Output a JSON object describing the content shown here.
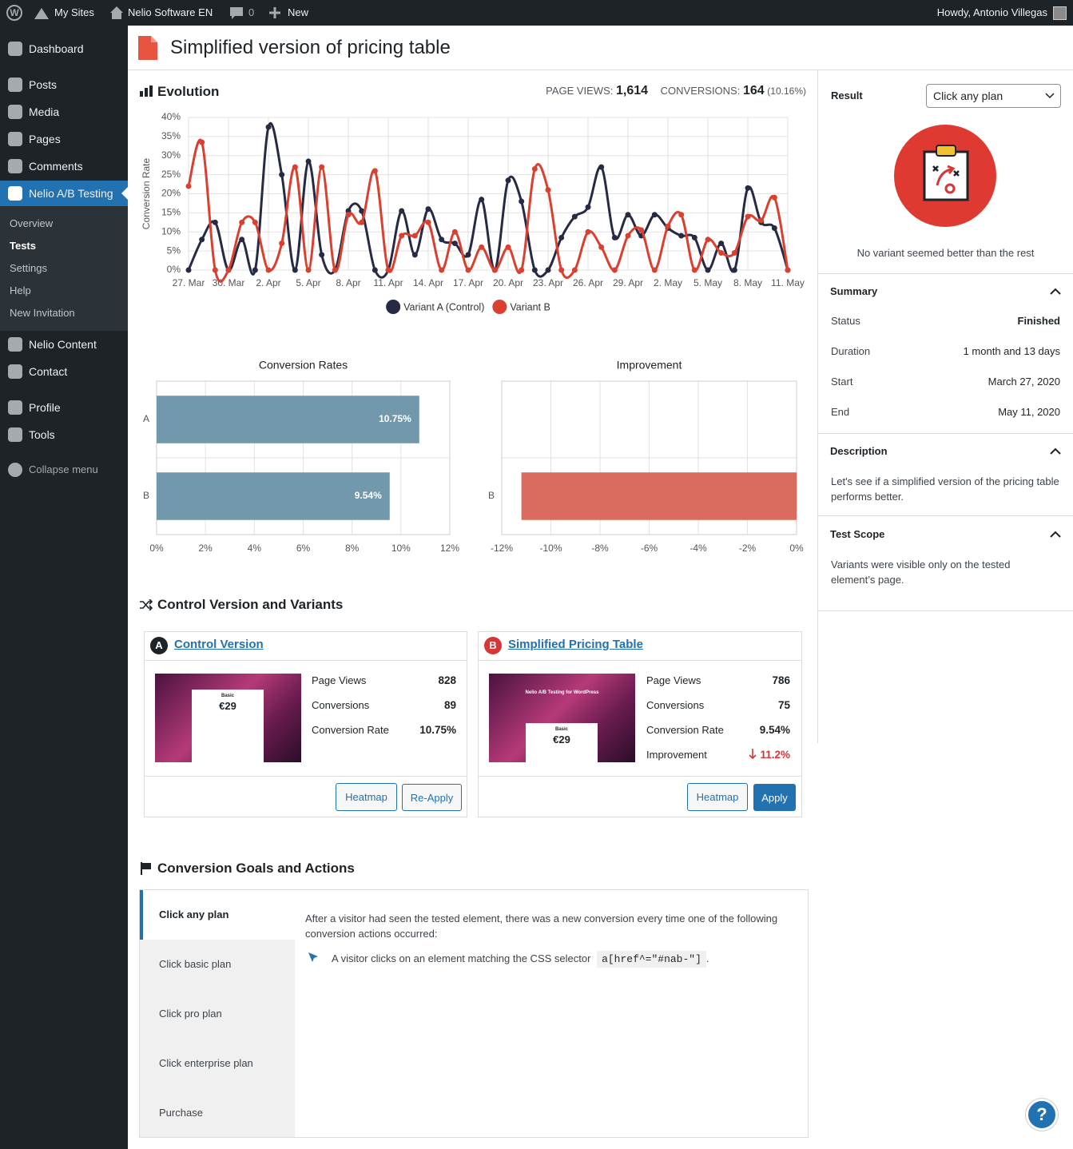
{
  "admin_bar": {
    "my_sites": "My Sites",
    "site": "Nelio Software EN",
    "comments": 0,
    "new": "New",
    "greeting": "Howdy, Antonio Villegas"
  },
  "menu": {
    "main": [
      "Dashboard",
      "Posts",
      "Media",
      "Pages",
      "Comments",
      "Nelio A/B Testing"
    ],
    "submenu": [
      "Overview",
      "Tests",
      "Settings",
      "Help",
      "New Invitation"
    ],
    "more": [
      "Nelio Content",
      "Contact",
      "Profile",
      "Tools"
    ],
    "collapse": "Collapse menu"
  },
  "header": {
    "title": "Simplified version of pricing table"
  },
  "evolution": {
    "page_views_label": "PAGE VIEWS:",
    "page_views": "1,614",
    "conversions_label": "CONVERSIONS:",
    "conversions": 164,
    "conversion_rate": "(10.16%)"
  },
  "chart_data": [
    {
      "type": "line",
      "title": "Evolution",
      "y_label": "Conversion Rate",
      "grid": true,
      "legend": "bottom",
      "categories": [
        "27. Mar",
        null,
        null,
        "30. Mar",
        null,
        null,
        "2. Apr",
        null,
        null,
        "5. Apr",
        null,
        null,
        "8. Apr",
        null,
        null,
        "11. Apr",
        null,
        null,
        "14. Apr",
        null,
        null,
        "17. Apr",
        null,
        null,
        "20. Apr",
        null,
        null,
        "23. Apr",
        null,
        null,
        "26. Apr",
        null,
        null,
        "29. Apr",
        null,
        null,
        "2. May",
        null,
        null,
        "5. May",
        null,
        null,
        "8. May",
        null,
        null,
        "11. May"
      ],
      "series": [
        {
          "name": "Variant A (Control)",
          "color": "#262a43",
          "values": [
            0,
            8,
            12.5,
            0,
            8,
            0,
            37.5,
            25,
            0,
            28.5,
            4,
            0,
            15.5,
            15.5,
            0,
            0,
            15.5,
            4,
            16,
            8,
            7,
            4,
            18.5,
            0,
            23.5,
            18,
            0,
            0,
            8.5,
            14,
            16.5,
            27,
            8.5,
            14.5,
            9,
            14.5,
            11,
            9,
            8.5,
            0,
            7,
            0,
            21.5,
            12.5,
            11,
            0
          ]
        },
        {
          "name": "Variant B",
          "color": "#d9402f",
          "values": [
            22,
            33.5,
            0,
            0,
            12.5,
            12.5,
            0,
            7,
            27,
            0,
            27,
            0,
            14.5,
            12.5,
            26,
            0,
            9,
            9,
            12.5,
            0,
            10,
            0,
            6,
            0,
            6,
            0,
            26.5,
            21,
            0,
            0,
            10,
            6,
            0,
            9,
            10.5,
            0,
            11.5,
            14.5,
            0,
            8,
            4.5,
            4.5,
            14,
            13,
            19,
            0
          ]
        }
      ],
      "ylim": [
        0,
        40
      ],
      "yticks": [
        {
          "value": 0,
          "label": "0%"
        },
        {
          "value": 5,
          "label": "5%"
        },
        {
          "value": 10,
          "label": "10%"
        },
        {
          "value": 15,
          "label": "15%"
        },
        {
          "value": 20,
          "label": "20%"
        },
        {
          "value": 25,
          "label": "25%"
        },
        {
          "value": 30,
          "label": "30%"
        },
        {
          "value": 35,
          "label": "35%"
        },
        {
          "value": 40,
          "label": "40%"
        }
      ]
    },
    {
      "type": "hbar",
      "title": "Conversion Rates",
      "categories": [
        "A",
        "B"
      ],
      "values": [
        10.75,
        9.54
      ],
      "value_labels": [
        "10.75%",
        "9.54%"
      ],
      "color": "#7199ab",
      "xlim": [
        0,
        12
      ],
      "xticks": [
        {
          "value": 0,
          "label": "0%"
        },
        {
          "value": 2,
          "label": "2%"
        },
        {
          "value": 4,
          "label": "4%"
        },
        {
          "value": 6,
          "label": "6%"
        },
        {
          "value": 8,
          "label": "8%"
        },
        {
          "value": 10,
          "label": "10%"
        },
        {
          "value": 12,
          "label": "12%"
        }
      ]
    },
    {
      "type": "hbar",
      "title": "Improvement",
      "categories": [
        null,
        "B"
      ],
      "values": [
        null,
        -11.2
      ],
      "color": "#db6b5e",
      "xlim": [
        -12,
        0
      ],
      "xticks": [
        {
          "value": -12,
          "label": "-12%"
        },
        {
          "value": -10,
          "label": "-10%"
        },
        {
          "value": -8,
          "label": "-8%"
        },
        {
          "value": -6,
          "label": "-6%"
        },
        {
          "value": -4,
          "label": "-4%"
        },
        {
          "value": -2,
          "label": "-2%"
        },
        {
          "value": 0,
          "label": "0%"
        }
      ]
    }
  ],
  "variants": {
    "title": "Control Version and Variants",
    "cards": [
      {
        "letter": "A",
        "name": "Control Version",
        "thumbnail": [
          "Basic",
          "€29"
        ],
        "metrics": [
          [
            "Page Views",
            828
          ],
          [
            "Conversions",
            89
          ],
          [
            "Conversion Rate",
            "10.75%"
          ]
        ],
        "buttons": [
          "Heatmap",
          "Re-Apply"
        ]
      },
      {
        "letter": "B",
        "name": "Simplified Pricing Table",
        "thumbnail": [
          "Nelio A/B Testing for WordPress",
          "Basic",
          "€29"
        ],
        "metrics": [
          [
            "Page Views",
            786
          ],
          [
            "Conversions",
            75
          ],
          [
            "Conversion Rate",
            "9.54%"
          ],
          [
            "Improvement",
            "11.2%"
          ]
        ],
        "buttons": [
          "Heatmap",
          "Apply"
        ]
      }
    ]
  },
  "goals": {
    "title": "Conversion Goals and Actions",
    "tabs": [
      "Click any plan",
      "Click basic plan",
      "Click pro plan",
      "Click enterprise plan",
      "Purchase"
    ],
    "description": "After a visitor had seen the tested element, there was a new conversion every time one of the following conversion actions occurred:",
    "action": {
      "text": "A visitor clicks on an element matching the CSS selector",
      "selector": "a[href^=\"#nab-\"]",
      "end": "."
    }
  },
  "result": {
    "label": "Result",
    "goal": "Click any plan",
    "message": "No variant seemed better than the rest"
  },
  "summary": {
    "title": "Summary",
    "rows": [
      [
        "Status",
        "Finished"
      ],
      [
        "Duration",
        "1 month and 13 days"
      ],
      [
        "Start",
        "March 27, 2020"
      ],
      [
        "End",
        "May 11, 2020"
      ]
    ]
  },
  "description": {
    "title": "Description",
    "text": "Let's see if a simplified version of the pricing table performs better."
  },
  "scope": {
    "title": "Test Scope",
    "text": "Variants were visible only on the tested element’s page."
  },
  "help": "?"
}
